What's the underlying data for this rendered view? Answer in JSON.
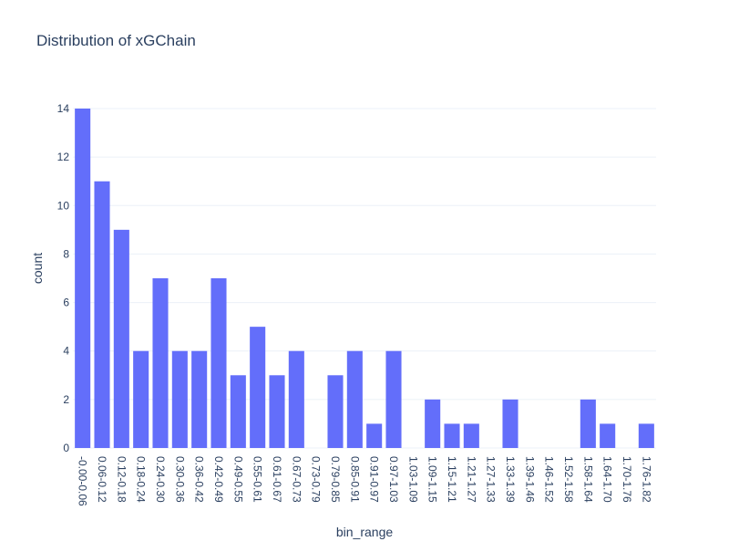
{
  "chart_data": {
    "type": "bar",
    "title": "Distribution of xGChain",
    "xlabel": "bin_range",
    "ylabel": "count",
    "ylim": [
      0,
      14
    ],
    "yticks": [
      0,
      2,
      4,
      6,
      8,
      10,
      12,
      14
    ],
    "grid": true,
    "legend": "none",
    "bar_color": "#636efa",
    "categories": [
      "-0.00-0.06",
      "0.06-0.12",
      "0.12-0.18",
      "0.18-0.24",
      "0.24-0.30",
      "0.30-0.36",
      "0.36-0.42",
      "0.42-0.49",
      "0.49-0.55",
      "0.55-0.61",
      "0.61-0.67",
      "0.67-0.73",
      "0.73-0.79",
      "0.79-0.85",
      "0.85-0.91",
      "0.91-0.97",
      "0.97-1.03",
      "1.03-1.09",
      "1.09-1.15",
      "1.15-1.21",
      "1.21-1.27",
      "1.27-1.33",
      "1.33-1.39",
      "1.39-1.46",
      "1.46-1.52",
      "1.52-1.58",
      "1.58-1.64",
      "1.64-1.70",
      "1.70-1.76",
      "1.76-1.82"
    ],
    "values": [
      14,
      11,
      9,
      4,
      7,
      4,
      4,
      7,
      3,
      5,
      3,
      4,
      0,
      3,
      4,
      1,
      4,
      0,
      2,
      1,
      1,
      0,
      2,
      0,
      0,
      0,
      2,
      1,
      0,
      1
    ]
  }
}
